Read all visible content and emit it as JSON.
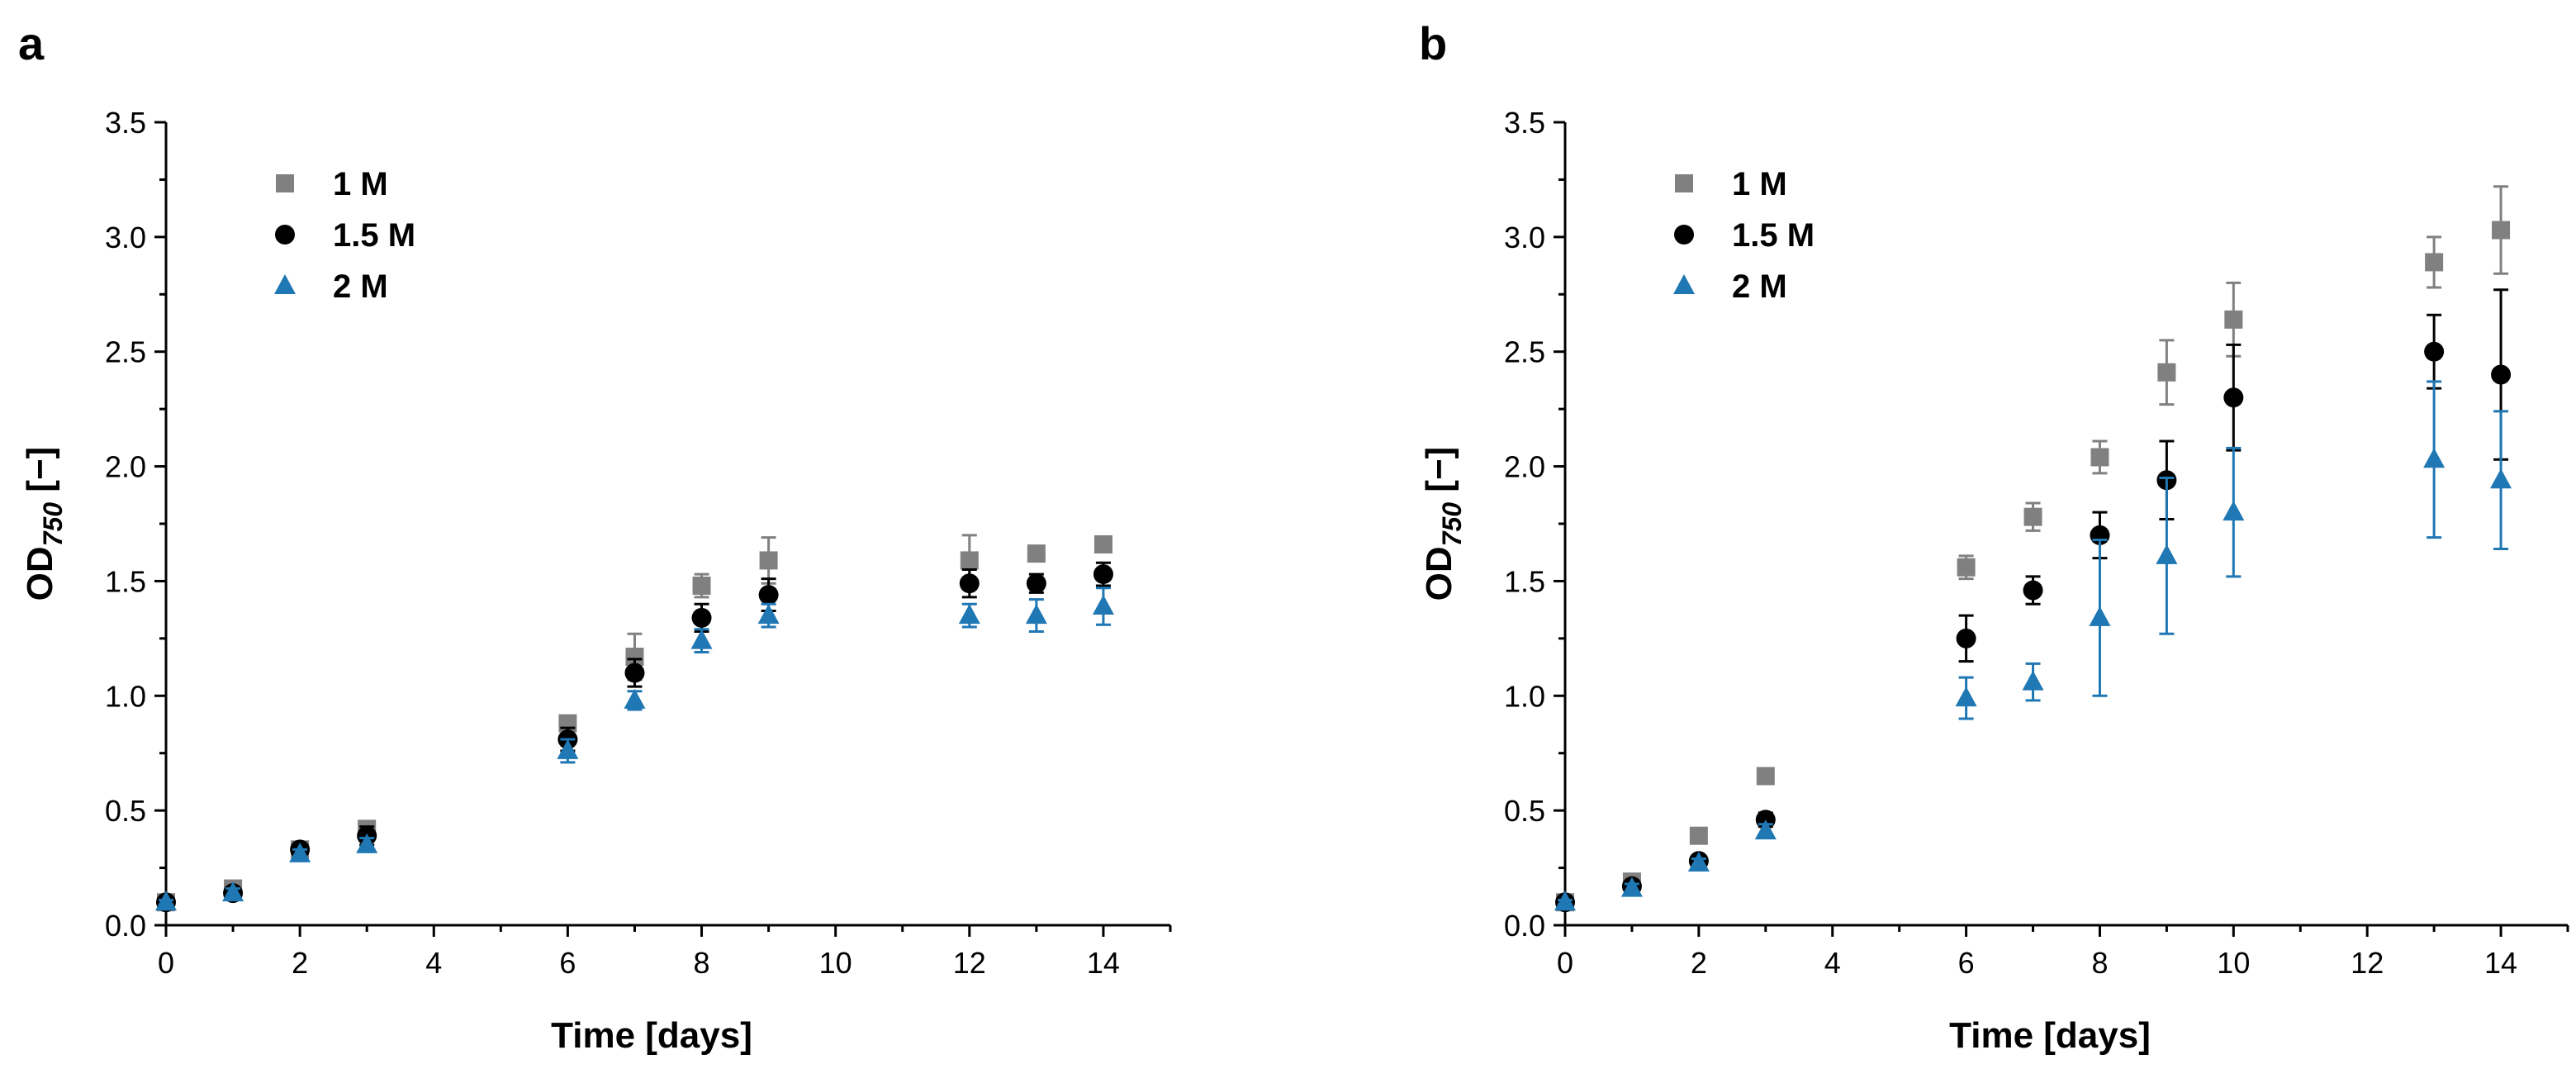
{
  "chart_data": [
    {
      "type": "scatter",
      "panel": "a",
      "title": "",
      "xlabel": "Time [days]",
      "ylabel_main": "OD",
      "ylabel_sub": "750",
      "ylabel_suffix": " [−]",
      "xlim": [
        0,
        15
      ],
      "ylim": [
        0,
        3.5
      ],
      "xticks": [
        0,
        2,
        4,
        6,
        8,
        10,
        12,
        14
      ],
      "yticks": [
        "0.0",
        "0.5",
        "1.0",
        "1.5",
        "2.0",
        "2.5",
        "3.0",
        "3.5"
      ],
      "legend_position": "top-left",
      "series": [
        {
          "name": "1 M",
          "marker": "square",
          "color": "#808080",
          "x": [
            0,
            1,
            2,
            3,
            6,
            7,
            8,
            9,
            12,
            13,
            14
          ],
          "y": [
            0.1,
            0.16,
            0.33,
            0.42,
            0.88,
            1.17,
            1.48,
            1.59,
            1.59,
            1.62,
            1.66
          ],
          "err": [
            0.01,
            0.02,
            0.02,
            0.03,
            0.03,
            0.1,
            0.05,
            0.1,
            0.11,
            0.02,
            0.03
          ]
        },
        {
          "name": "1.5 M",
          "marker": "circle",
          "color": "#000000",
          "x": [
            0,
            1,
            2,
            3,
            6,
            7,
            8,
            9,
            12,
            13,
            14
          ],
          "y": [
            0.1,
            0.14,
            0.33,
            0.39,
            0.81,
            1.1,
            1.34,
            1.44,
            1.49,
            1.49,
            1.53
          ],
          "err": [
            0.01,
            0.02,
            0.02,
            0.04,
            0.05,
            0.06,
            0.06,
            0.07,
            0.06,
            0.04,
            0.05
          ]
        },
        {
          "name": "2 M",
          "marker": "triangle",
          "color": "#1f77b4",
          "x": [
            0,
            1,
            2,
            3,
            6,
            7,
            8,
            9,
            12,
            13,
            14
          ],
          "y": [
            0.1,
            0.14,
            0.31,
            0.35,
            0.76,
            0.98,
            1.24,
            1.35,
            1.35,
            1.35,
            1.39
          ],
          "err": [
            0.01,
            0.02,
            0.02,
            0.03,
            0.05,
            0.04,
            0.05,
            0.05,
            0.05,
            0.07,
            0.08
          ]
        }
      ]
    },
    {
      "type": "scatter",
      "panel": "b",
      "title": "",
      "xlabel": "Time [days]",
      "ylabel_main": "OD",
      "ylabel_sub": "750",
      "ylabel_suffix": " [−]",
      "xlim": [
        0,
        15
      ],
      "ylim": [
        0,
        3.5
      ],
      "xticks": [
        0,
        2,
        4,
        6,
        8,
        10,
        12,
        14
      ],
      "yticks": [
        "0.0",
        "0.5",
        "1.0",
        "1.5",
        "2.0",
        "2.5",
        "3.0",
        "3.5"
      ],
      "legend_position": "top-left",
      "series": [
        {
          "name": "1 M",
          "marker": "square",
          "color": "#808080",
          "x": [
            0,
            1,
            2,
            3,
            6,
            7,
            8,
            9,
            10,
            13,
            14
          ],
          "y": [
            0.1,
            0.19,
            0.39,
            0.65,
            1.56,
            1.78,
            2.04,
            2.41,
            2.64,
            2.89,
            3.03
          ],
          "err": [
            0.01,
            0.02,
            0.02,
            0.02,
            0.05,
            0.06,
            0.07,
            0.14,
            0.16,
            0.11,
            0.19
          ]
        },
        {
          "name": "1.5 M",
          "marker": "circle",
          "color": "#000000",
          "x": [
            0,
            1,
            2,
            3,
            6,
            7,
            8,
            9,
            10,
            13,
            14
          ],
          "y": [
            0.1,
            0.17,
            0.28,
            0.46,
            1.25,
            1.46,
            1.7,
            1.94,
            2.3,
            2.5,
            2.4
          ],
          "err": [
            0.01,
            0.02,
            0.02,
            0.03,
            0.1,
            0.06,
            0.1,
            0.17,
            0.23,
            0.16,
            0.37
          ]
        },
        {
          "name": "2 M",
          "marker": "triangle",
          "color": "#1f77b4",
          "x": [
            0,
            1,
            2,
            3,
            6,
            7,
            8,
            9,
            10,
            13,
            14
          ],
          "y": [
            0.1,
            0.16,
            0.27,
            0.41,
            0.99,
            1.06,
            1.34,
            1.61,
            1.8,
            2.03,
            1.94
          ],
          "err": [
            0.01,
            0.02,
            0.02,
            0.03,
            0.09,
            0.08,
            0.34,
            0.34,
            0.28,
            0.34,
            0.3
          ]
        }
      ]
    }
  ]
}
